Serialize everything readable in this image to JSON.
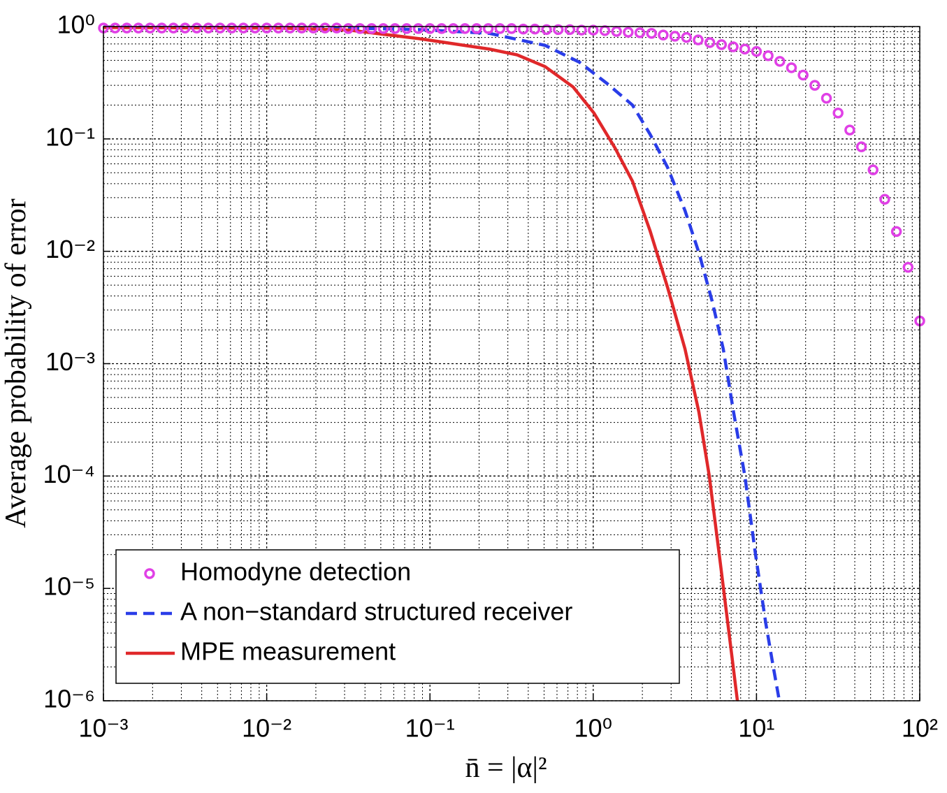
{
  "chart_data": {
    "type": "line",
    "xlabel": "n̄ = |α|²",
    "ylabel": "Average probability of error",
    "xscale": "log",
    "yscale": "log",
    "grid": true,
    "legend_loc": "lower left",
    "xlim": [
      0.001,
      100
    ],
    "ylim": [
      1e-06,
      1
    ],
    "xticks": [
      {
        "value": 0.001,
        "label": "10⁻³"
      },
      {
        "value": 0.01,
        "label": "10⁻²"
      },
      {
        "value": 0.1,
        "label": "10⁻¹"
      },
      {
        "value": 1,
        "label": "10⁰"
      },
      {
        "value": 10,
        "label": "10¹"
      },
      {
        "value": 100,
        "label": "10²"
      }
    ],
    "yticks": [
      {
        "value": 1,
        "label": "10⁰"
      },
      {
        "value": 0.1,
        "label": "10⁻¹"
      },
      {
        "value": 0.01,
        "label": "10⁻²"
      },
      {
        "value": 0.001,
        "label": "10⁻³"
      },
      {
        "value": 0.0001,
        "label": "10⁻⁴"
      },
      {
        "value": 1e-05,
        "label": "10⁻⁵"
      },
      {
        "value": 1e-06,
        "label": "10⁻⁶"
      }
    ],
    "series": [
      {
        "name": "Homodyne detection",
        "color": "#e040e6",
        "marker": "o",
        "linestyle": "none",
        "x": [
          0.001,
          0.001179,
          0.00139,
          0.001638,
          0.001931,
          0.002276,
          0.002683,
          0.003162,
          0.003728,
          0.004394,
          0.005179,
          0.006105,
          0.007197,
          0.008483,
          0.01,
          0.01179,
          0.0139,
          0.01638,
          0.01931,
          0.02276,
          0.02683,
          0.03162,
          0.03728,
          0.04394,
          0.05179,
          0.06105,
          0.07197,
          0.08483,
          0.1,
          0.1179,
          0.139,
          0.1638,
          0.1931,
          0.2276,
          0.2683,
          0.3162,
          0.3728,
          0.4394,
          0.5179,
          0.6105,
          0.7197,
          0.8483,
          1,
          1.179,
          1.39,
          1.638,
          1.931,
          2.276,
          2.683,
          3.162,
          3.728,
          4.394,
          5.179,
          6.105,
          7.197,
          8.483,
          10,
          11.79,
          13.9,
          16.38,
          19.31,
          22.76,
          26.83,
          31.62,
          37.28,
          43.94,
          51.79,
          61.05,
          71.97,
          84.83,
          100
        ],
        "values": [
          0.97,
          0.97,
          0.97,
          0.97,
          0.97,
          0.97,
          0.97,
          0.97,
          0.97,
          0.97,
          0.97,
          0.97,
          0.97,
          0.97,
          0.97,
          0.97,
          0.97,
          0.97,
          0.97,
          0.97,
          0.97,
          0.96,
          0.96,
          0.96,
          0.96,
          0.96,
          0.96,
          0.96,
          0.96,
          0.96,
          0.96,
          0.96,
          0.96,
          0.96,
          0.96,
          0.96,
          0.95,
          0.95,
          0.94,
          0.94,
          0.94,
          0.93,
          0.93,
          0.92,
          0.905,
          0.89,
          0.88,
          0.87,
          0.84,
          0.82,
          0.8,
          0.76,
          0.72,
          0.69,
          0.66,
          0.63,
          0.6,
          0.55,
          0.49,
          0.43,
          0.37,
          0.3,
          0.23,
          0.17,
          0.12,
          0.085,
          0.053,
          0.029,
          0.015,
          0.0072,
          0.0024
        ]
      },
      {
        "name": "A non−standard structured receiver",
        "color": "#2a3de8",
        "marker": "none",
        "linestyle": "dashed",
        "x": [
          0.001,
          0.0321,
          0.0861,
          0.231,
          0.507,
          0.826,
          1.22,
          1.74,
          2.23,
          2.85,
          3.65,
          4.44,
          5.35,
          6.26,
          7.24,
          8.49,
          9.82,
          11.4,
          12.6,
          13.8
        ],
        "values": [
          0.99,
          0.97,
          0.94,
          0.87,
          0.68,
          0.48,
          0.31,
          0.2,
          0.11,
          0.056,
          0.023,
          0.0097,
          0.0036,
          0.00135,
          0.00037,
          0.0001,
          2.1e-05,
          4.9e-06,
          2.1e-06,
          1e-06
        ]
      },
      {
        "name": "MPE measurement",
        "color": "#e0282a",
        "marker": "none",
        "linestyle": "solid",
        "x": [
          0.001,
          0.012,
          0.0321,
          0.0861,
          0.231,
          0.342,
          0.507,
          0.753,
          1.01,
          1.36,
          1.74,
          2.23,
          2.85,
          3.65,
          4.44,
          5.14,
          5.97,
          6.92,
          7.64
        ],
        "values": [
          0.98,
          0.97,
          0.93,
          0.78,
          0.63,
          0.56,
          0.44,
          0.29,
          0.17,
          0.083,
          0.042,
          0.0152,
          0.0048,
          0.00135,
          0.00037,
          0.0001,
          1.8e-05,
          3.2e-06,
          1e-06
        ]
      }
    ]
  }
}
